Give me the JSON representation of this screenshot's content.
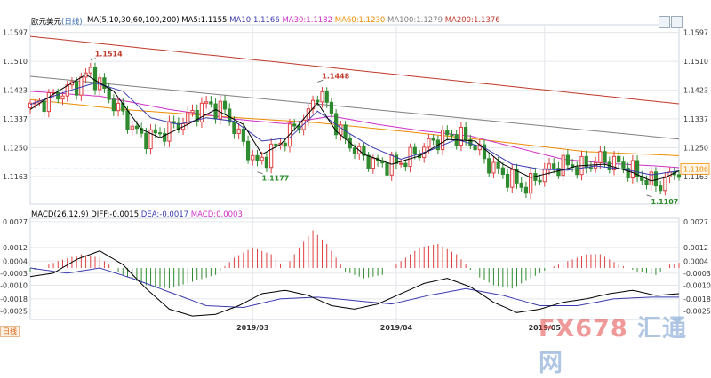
{
  "header": {
    "symbol": "欧元美元",
    "period": "(日线)",
    "ma_label": "MA(5,10,30,60,100,200)",
    "ma_values": [
      {
        "text": "MA5:1.1155",
        "color": "#000000"
      },
      {
        "text": "MA10:1.1166",
        "color": "#3a3ab0"
      },
      {
        "text": "MA30:1.1182",
        "color": "#d030c8"
      },
      {
        "text": "MA60:1.1230",
        "color": "#f08c00"
      },
      {
        "text": "MA100:1.1279",
        "color": "#808080"
      },
      {
        "text": "MA200:1.1376",
        "color": "#c0392b"
      }
    ],
    "macd_label": "MACD(26,12,9)",
    "macd_values": [
      {
        "text": "DIFF:-0.0015",
        "color": "#000000"
      },
      {
        "text": "DEA:-0.0017",
        "color": "#3a3ab0"
      },
      {
        "text": "MACD:0.0003",
        "color": "#d030c8"
      }
    ],
    "day_button": "日线"
  },
  "watermark": {
    "brand": "FX678",
    "suffix": "汇通网"
  },
  "chart_data": [
    {
      "type": "candlestick",
      "title": "欧元美元(日线)",
      "y_ticks": [
        "1.1597",
        "1.1510",
        "1.1423",
        "1.1337",
        "1.1250",
        "1.1163"
      ],
      "ylim": [
        1.108,
        1.162
      ],
      "x_labels": [
        {
          "index": 48,
          "label": "2019/03"
        },
        {
          "index": 79,
          "label": "2019/04"
        },
        {
          "index": 111,
          "label": "2019/05"
        }
      ],
      "current_price": "1.1186",
      "annotations": [
        {
          "index": 13,
          "text": "1.1514",
          "kind": "high"
        },
        {
          "index": 62,
          "text": "1.1448",
          "kind": "high"
        },
        {
          "index": 49,
          "text": "1.1177",
          "kind": "low"
        },
        {
          "index": 133,
          "text": "1.1107",
          "kind": "low"
        }
      ],
      "ma200": [
        1.1585,
        1.1382
      ],
      "ma100": [
        1.1465,
        1.1276
      ],
      "ma60_anchors": [
        [
          0,
          1.1395
        ],
        [
          20,
          1.1365
        ],
        [
          45,
          1.134
        ],
        [
          62,
          1.1325
        ],
        [
          80,
          1.13
        ],
        [
          100,
          1.127
        ],
        [
          120,
          1.1238
        ],
        [
          140,
          1.1226
        ]
      ],
      "ma30_anchors": [
        [
          0,
          1.142
        ],
        [
          15,
          1.1405
        ],
        [
          30,
          1.1365
        ],
        [
          45,
          1.1335
        ],
        [
          55,
          1.1322
        ],
        [
          65,
          1.1345
        ],
        [
          75,
          1.132
        ],
        [
          85,
          1.13
        ],
        [
          95,
          1.1285
        ],
        [
          105,
          1.125
        ],
        [
          115,
          1.1215
        ],
        [
          125,
          1.1202
        ],
        [
          135,
          1.1195
        ],
        [
          140,
          1.119
        ]
      ],
      "ma10_anchors": [
        [
          0,
          1.138
        ],
        [
          8,
          1.142
        ],
        [
          14,
          1.1445
        ],
        [
          20,
          1.142
        ],
        [
          26,
          1.134
        ],
        [
          32,
          1.132
        ],
        [
          38,
          1.134
        ],
        [
          44,
          1.133
        ],
        [
          50,
          1.127
        ],
        [
          56,
          1.128
        ],
        [
          62,
          1.136
        ],
        [
          68,
          1.13
        ],
        [
          74,
          1.125
        ],
        [
          80,
          1.1215
        ],
        [
          86,
          1.124
        ],
        [
          92,
          1.1275
        ],
        [
          98,
          1.125
        ],
        [
          104,
          1.12
        ],
        [
          110,
          1.1185
        ],
        [
          116,
          1.1182
        ],
        [
          122,
          1.1195
        ],
        [
          128,
          1.1185
        ],
        [
          134,
          1.1168
        ],
        [
          140,
          1.118
        ]
      ],
      "ma5_anchors": [
        [
          0,
          1.1365
        ],
        [
          6,
          1.142
        ],
        [
          12,
          1.147
        ],
        [
          18,
          1.142
        ],
        [
          24,
          1.1305
        ],
        [
          28,
          1.128
        ],
        [
          34,
          1.132
        ],
        [
          40,
          1.1365
        ],
        [
          46,
          1.132
        ],
        [
          50,
          1.123
        ],
        [
          54,
          1.126
        ],
        [
          58,
          1.132
        ],
        [
          62,
          1.1385
        ],
        [
          66,
          1.13
        ],
        [
          72,
          1.123
        ],
        [
          78,
          1.12
        ],
        [
          84,
          1.1225
        ],
        [
          90,
          1.1275
        ],
        [
          96,
          1.127
        ],
        [
          102,
          1.12
        ],
        [
          108,
          1.116
        ],
        [
          114,
          1.118
        ],
        [
          118,
          1.1195
        ],
        [
          124,
          1.12
        ],
        [
          130,
          1.1175
        ],
        [
          134,
          1.115
        ],
        [
          137,
          1.116
        ],
        [
          140,
          1.118
        ]
      ],
      "close_anchors": [
        [
          0,
          1.137
        ],
        [
          6,
          1.141
        ],
        [
          10,
          1.144
        ],
        [
          13,
          1.148
        ],
        [
          17,
          1.14
        ],
        [
          21,
          1.133
        ],
        [
          24,
          1.128
        ],
        [
          28,
          1.129
        ],
        [
          33,
          1.133
        ],
        [
          38,
          1.138
        ],
        [
          42,
          1.136
        ],
        [
          46,
          1.126
        ],
        [
          49,
          1.12
        ],
        [
          53,
          1.125
        ],
        [
          57,
          1.131
        ],
        [
          60,
          1.135
        ],
        [
          62,
          1.142
        ],
        [
          64,
          1.138
        ],
        [
          67,
          1.129
        ],
        [
          71,
          1.123
        ],
        [
          75,
          1.12
        ],
        [
          79,
          1.12
        ],
        [
          83,
          1.123
        ],
        [
          87,
          1.127
        ],
        [
          91,
          1.129
        ],
        [
          95,
          1.127
        ],
        [
          99,
          1.12
        ],
        [
          103,
          1.116
        ],
        [
          107,
          1.113
        ],
        [
          111,
          1.118
        ],
        [
          115,
          1.12
        ],
        [
          119,
          1.119
        ],
        [
          123,
          1.1215
        ],
        [
          127,
          1.12
        ],
        [
          131,
          1.117
        ],
        [
          133,
          1.115
        ],
        [
          136,
          1.114
        ],
        [
          140,
          1.1186
        ]
      ]
    },
    {
      "type": "macd",
      "title": "MACD(26,12,9)",
      "y_ticks": [
        "0.0027",
        "0.0012",
        "0.0004",
        "-0.0003",
        "-0.0010",
        "-0.0018",
        "-0.0025"
      ],
      "ylim": [
        -0.003,
        0.0029
      ],
      "diff_anchors": [
        [
          0,
          -0.0005
        ],
        [
          5,
          -0.0003
        ],
        [
          10,
          0.0005
        ],
        [
          15,
          0.001
        ],
        [
          20,
          0.0002
        ],
        [
          25,
          -0.0012
        ],
        [
          30,
          -0.0024
        ],
        [
          35,
          -0.0028
        ],
        [
          40,
          -0.0027
        ],
        [
          45,
          -0.0022
        ],
        [
          50,
          -0.0015
        ],
        [
          55,
          -0.0013
        ],
        [
          60,
          -0.0016
        ],
        [
          65,
          -0.0022
        ],
        [
          70,
          -0.0024
        ],
        [
          75,
          -0.0021
        ],
        [
          80,
          -0.0015
        ],
        [
          85,
          -0.0009
        ],
        [
          90,
          -0.0006
        ],
        [
          95,
          -0.0011
        ],
        [
          100,
          -0.002
        ],
        [
          105,
          -0.0026
        ],
        [
          110,
          -0.0024
        ],
        [
          115,
          -0.002
        ],
        [
          120,
          -0.0018
        ],
        [
          125,
          -0.0015
        ],
        [
          130,
          -0.0013
        ],
        [
          135,
          -0.0016
        ],
        [
          140,
          -0.0015
        ]
      ],
      "dea_anchors": [
        [
          0,
          0.0
        ],
        [
          8,
          -0.0003
        ],
        [
          15,
          0.0
        ],
        [
          22,
          -0.0006
        ],
        [
          30,
          -0.0014
        ],
        [
          38,
          -0.0022
        ],
        [
          46,
          -0.0023
        ],
        [
          54,
          -0.0018
        ],
        [
          62,
          -0.0017
        ],
        [
          70,
          -0.0019
        ],
        [
          78,
          -0.0021
        ],
        [
          86,
          -0.0016
        ],
        [
          94,
          -0.0012
        ],
        [
          102,
          -0.0016
        ],
        [
          110,
          -0.0022
        ],
        [
          118,
          -0.0022
        ],
        [
          126,
          -0.0018
        ],
        [
          134,
          -0.0017
        ],
        [
          140,
          -0.0017
        ]
      ],
      "hist_anchors": [
        [
          0,
          -0.0002
        ],
        [
          6,
          0.0004
        ],
        [
          11,
          0.0008
        ],
        [
          15,
          0.0006
        ],
        [
          20,
          -0.0004
        ],
        [
          25,
          -0.001
        ],
        [
          30,
          -0.0012
        ],
        [
          35,
          -0.0008
        ],
        [
          40,
          -0.0004
        ],
        [
          44,
          0.0006
        ],
        [
          48,
          0.0012
        ],
        [
          52,
          0.0008
        ],
        [
          55,
          0.0
        ],
        [
          58,
          0.0012
        ],
        [
          61,
          0.0022
        ],
        [
          64,
          0.0014
        ],
        [
          68,
          -0.0002
        ],
        [
          72,
          -0.0006
        ],
        [
          76,
          -0.0004
        ],
        [
          80,
          0.0004
        ],
        [
          84,
          0.0012
        ],
        [
          88,
          0.0014
        ],
        [
          92,
          0.0008
        ],
        [
          96,
          -0.0004
        ],
        [
          100,
          -0.001
        ],
        [
          104,
          -0.0012
        ],
        [
          108,
          -0.0006
        ],
        [
          112,
          0.0
        ],
        [
          116,
          0.0004
        ],
        [
          120,
          0.0008
        ],
        [
          123,
          0.0008
        ],
        [
          127,
          0.0002
        ],
        [
          131,
          -0.0002
        ],
        [
          135,
          -0.0004
        ],
        [
          138,
          0.0002
        ],
        [
          140,
          0.0003
        ]
      ]
    }
  ],
  "colors": {
    "up": "#e04040",
    "down": "#2e8b2e",
    "grid": "#e3e6ea",
    "axis": "#cfd6dd",
    "label": "#333333"
  }
}
